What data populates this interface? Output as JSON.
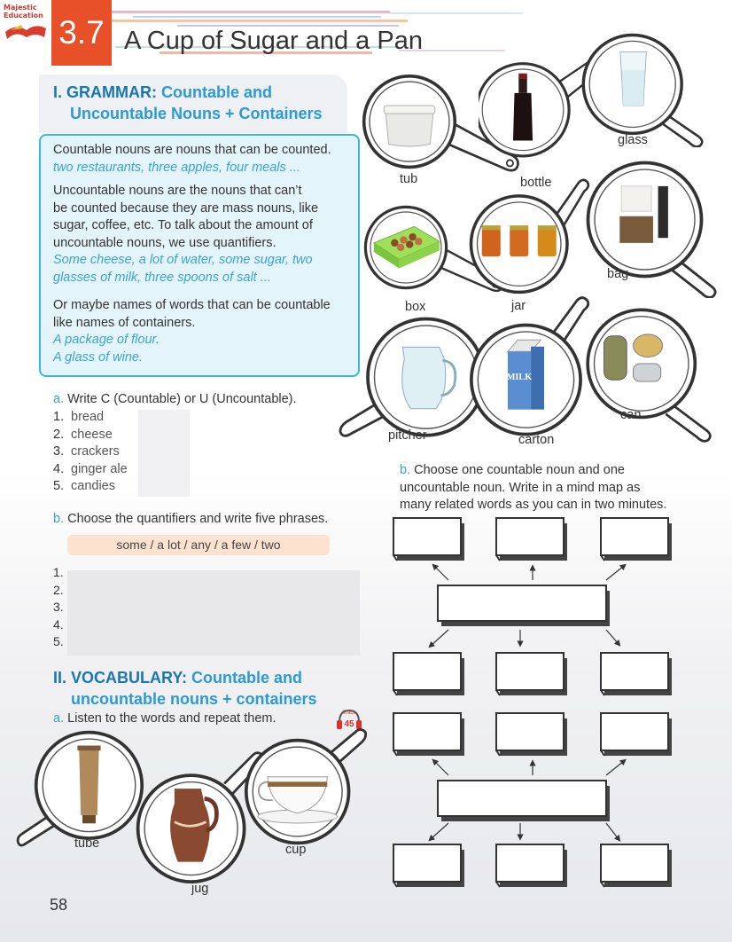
{
  "header": {
    "logo_line1": "Majestic",
    "logo_line2": "Education",
    "lesson_number": "3.7",
    "title": "A Cup of Sugar and a Pan"
  },
  "grammar": {
    "heading_bold": "I. GRAMMAR:",
    "heading_rest": "Countable and",
    "heading_line2": "Uncountable Nouns + Containers",
    "box": {
      "p1": "Countable nouns are nouns that can be counted.",
      "p1_example": "two restaurants, three apples, four meals ...",
      "p2_line1": "Uncountable nouns are the nouns that can’t",
      "p2_line2": "be counted because they are mass nouns, like",
      "p2_line3": "sugar, coffee, etc. To talk about the amount of",
      "p2_line4": "uncountable nouns, we use quantifiers.",
      "p2_example1": "Some cheese, a lot of water, some sugar, two",
      "p2_example2": "glasses of milk, three spoons of salt ...",
      "p3_line1": "Or maybe names of words that can be countable",
      "p3_line2": "like names of containers.",
      "p3_example1": "A package of flour.",
      "p3_example2": "A glass of wine."
    }
  },
  "exercise_a": {
    "letter": "a.",
    "instruction": "Write C (Countable) or U (Uncountable).",
    "items": [
      {
        "n": "1.",
        "word": "bread"
      },
      {
        "n": "2.",
        "word": "cheese"
      },
      {
        "n": "3.",
        "word": "crackers"
      },
      {
        "n": "4.",
        "word": "ginger ale"
      },
      {
        "n": "5.",
        "word": "candies"
      }
    ]
  },
  "exercise_b": {
    "letter": "b.",
    "instruction": "Choose the quantifiers and write five phrases.",
    "quantifiers": "some / a lot / any / a few / two",
    "numbers": [
      "1.",
      "2.",
      "3.",
      "4.",
      "5."
    ]
  },
  "vocabulary": {
    "heading_bold": "II. VOCABULARY:",
    "heading_rest": "Countable and",
    "heading_line2": "uncountable nouns + containers",
    "letter": "a.",
    "instruction": "Listen to the words and repeat them.",
    "track_label": "Track",
    "track_number": "45"
  },
  "containers": {
    "tub": "tub",
    "bottle": "bottle",
    "glass": "glass",
    "box": "box",
    "jar": "jar",
    "bag": "bag",
    "pitcher": "pitcher",
    "carton": "carton",
    "can": "can",
    "tube": "tube",
    "jug": "jug",
    "cup": "cup",
    "milk_text": "MILK"
  },
  "mind_map": {
    "letter": "b.",
    "line1": "Choose one countable noun and one",
    "line2": "uncountable noun. Write in a mind map as",
    "line3": "many related words as you can in two minutes."
  },
  "page_number": "58",
  "colors": {
    "accent_orange": "#e8502a",
    "heading_blue": "#1a76b3",
    "example_blue": "#3aa3d3",
    "box_border": "#3ab6e4"
  }
}
